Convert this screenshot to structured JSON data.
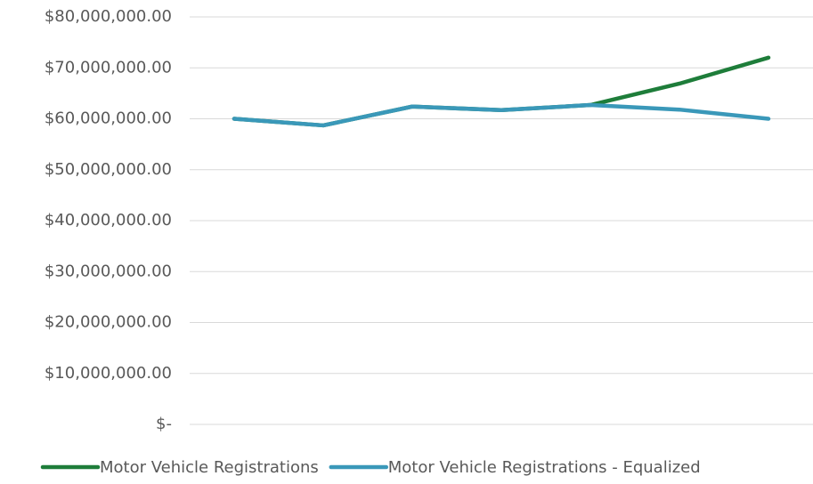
{
  "chart_data": {
    "type": "line",
    "categories": [
      null,
      null,
      null,
      null,
      null,
      null,
      null
    ],
    "series": [
      {
        "name": "Motor Vehicle Registrations",
        "color": "#1e7d3a",
        "values": [
          60000000,
          58700000,
          62400000,
          61700000,
          62700000,
          66900000,
          72000000
        ]
      },
      {
        "name": "Motor Vehicle Registrations - Equalized",
        "color": "#3a98b9",
        "values": [
          60000000,
          58700000,
          62400000,
          61700000,
          62700000,
          61800000,
          60000000
        ]
      }
    ],
    "ylim": [
      0,
      80000000
    ],
    "yticks": [
      {
        "value": 0,
        "label": "$-"
      },
      {
        "value": 10000000,
        "label": "$10,000,000.00"
      },
      {
        "value": 20000000,
        "label": "$20,000,000.00"
      },
      {
        "value": 30000000,
        "label": "$30,000,000.00"
      },
      {
        "value": 40000000,
        "label": "$40,000,000.00"
      },
      {
        "value": 50000000,
        "label": "$50,000,000.00"
      },
      {
        "value": 60000000,
        "label": "$60,000,000.00"
      },
      {
        "value": 70000000,
        "label": "$70,000,000.00"
      },
      {
        "value": 80000000,
        "label": "$80,000,000.00"
      }
    ],
    "grid": true,
    "legend": "bottom"
  }
}
